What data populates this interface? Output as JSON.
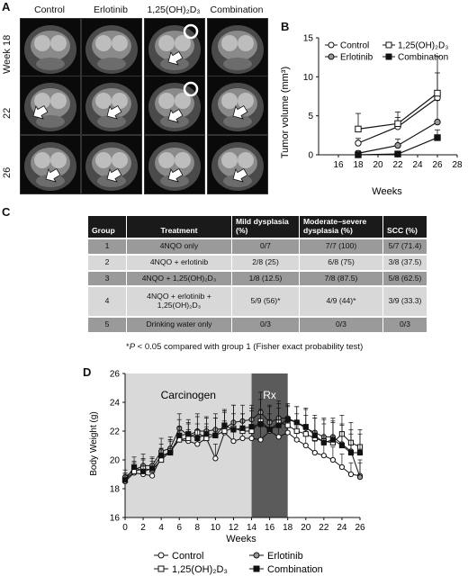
{
  "panelA": {
    "letter": "A",
    "columns": [
      "Control",
      "Erlotinib",
      "1,25(OH)₂D₃",
      "Combination"
    ],
    "rows": [
      "Week 18",
      "22",
      "26"
    ]
  },
  "panelB": {
    "letter": "B",
    "ylabel": "Tumor volume (mm³)",
    "xlabel": "Weeks",
    "xticks": [
      "16",
      "18",
      "20",
      "22",
      "24",
      "26",
      "28"
    ],
    "yticks": [
      "0",
      "5",
      "10",
      "15"
    ],
    "legend": [
      "Control",
      "1,25(OH)₂D₃",
      "Erlotinib",
      "Combination"
    ]
  },
  "panelC": {
    "letter": "C",
    "headers": [
      "Group",
      "Treatment",
      "Mild dysplasia (%)",
      "Moderate–severe dysplasia (%)",
      "SCC (%)"
    ],
    "rows": [
      [
        "1",
        "4NQO only",
        "0/7",
        "7/7 (100)",
        "5/7 (71.4)"
      ],
      [
        "2",
        "4NQO + erlotinib",
        "2/8 (25)",
        "6/8 (75)",
        "3/8 (37.5)"
      ],
      [
        "3",
        "4NQO + 1,25(OH)₂D₃",
        "1/8 (12.5)",
        "7/8 (87.5)",
        "5/8 (62.5)"
      ],
      [
        "4",
        "4NQO + erlotinib + 1,25(OH)₂D₃",
        "5/9 (56)*",
        "4/9 (44)*",
        "3/9 (33.3)"
      ],
      [
        "5",
        "Drinking water only",
        "0/3",
        "0/3",
        "0/3"
      ]
    ],
    "footnote_p": "P",
    "footnote": " < 0.05 compared with group 1 (Fisher exact probability test)"
  },
  "panelD": {
    "letter": "D",
    "ylabel": "Body Weight (g)",
    "xlabel": "Weeks",
    "region1": "Carcinogen",
    "region2": "Rx",
    "xticks": [
      "0",
      "2",
      "4",
      "6",
      "8",
      "10",
      "12",
      "14",
      "16",
      "18",
      "20",
      "22",
      "24",
      "26"
    ],
    "yticks": [
      "16",
      "18",
      "20",
      "22",
      "24",
      "26"
    ],
    "legend": [
      "Control",
      "Erlotinib",
      "1,25(OH)₂D₃",
      "Combination"
    ]
  },
  "chart_data": [
    {
      "type": "line",
      "panel": "B",
      "xlabel": "Weeks",
      "ylabel": "Tumor volume (mm³)",
      "xlim": [
        14,
        28
      ],
      "ylim": [
        0,
        15
      ],
      "x": [
        18,
        22,
        26
      ],
      "series": [
        {
          "name": "Control",
          "marker": "open-circle",
          "values": [
            1.5,
            3.6,
            7.3
          ],
          "error": [
            0.6,
            1.2,
            3.2
          ]
        },
        {
          "name": "Erlotinib",
          "marker": "gray-circle",
          "values": [
            0.2,
            1.2,
            4.2
          ],
          "error": [
            0.3,
            0.8,
            2.8
          ]
        },
        {
          "name": "1,25(OH)₂D₃",
          "marker": "open-square",
          "values": [
            3.3,
            4.0,
            7.9
          ],
          "error": [
            2.0,
            1.5,
            4.7
          ]
        },
        {
          "name": "Combination",
          "marker": "filled-square",
          "values": [
            0.0,
            0.1,
            2.2
          ],
          "error": [
            0.2,
            0.2,
            1.0
          ]
        }
      ]
    },
    {
      "type": "line",
      "panel": "D",
      "xlabel": "Weeks",
      "ylabel": "Body Weight (g)",
      "xlim": [
        0,
        26
      ],
      "ylim": [
        16,
        26
      ],
      "shaded": [
        {
          "label": "Carcinogen",
          "from": 0,
          "to": 14
        },
        {
          "label": "Rx",
          "from": 14,
          "to": 18
        }
      ],
      "x": [
        0,
        1,
        2,
        3,
        4,
        5,
        6,
        7,
        8,
        9,
        10,
        11,
        12,
        13,
        14,
        15,
        16,
        17,
        18,
        19,
        20,
        21,
        22,
        23,
        24,
        25,
        26
      ],
      "series": [
        {
          "name": "Control",
          "marker": "open-circle",
          "values": [
            18.5,
            19.1,
            19.0,
            18.9,
            20.2,
            20.6,
            21.4,
            21.3,
            21.1,
            21.5,
            20.1,
            21.9,
            21.3,
            21.5,
            21.5,
            21.4,
            22.0,
            21.6,
            21.9,
            21.4,
            21.0,
            20.5,
            20.3,
            20.0,
            19.5,
            19.0,
            18.9
          ],
          "error": [
            0.4,
            0.5,
            0.6,
            0.5,
            0.6,
            0.7,
            0.6,
            0.8,
            0.9,
            0.8,
            1.0,
            0.8,
            1.0,
            0.8,
            0.9,
            0.9,
            0.8,
            1.0,
            0.8,
            0.9,
            0.9,
            0.8,
            0.8,
            0.9,
            0.9,
            0.8,
            0.9
          ]
        },
        {
          "name": "Erlotinib",
          "marker": "gray-circle",
          "values": [
            18.8,
            19.3,
            19.6,
            19.6,
            20.6,
            20.8,
            22.2,
            21.7,
            22.0,
            22.0,
            22.1,
            22.2,
            22.6,
            22.7,
            22.8,
            23.3,
            22.6,
            22.9,
            22.9,
            22.6,
            22.2,
            21.9,
            21.6,
            21.6,
            21.1,
            20.6,
            18.8
          ],
          "error": [
            0.5,
            0.6,
            0.8,
            0.6,
            0.9,
            0.8,
            1.0,
            0.9,
            1.2,
            1.0,
            1.1,
            1.2,
            1.2,
            1.1,
            1.0,
            1.4,
            1.2,
            1.0,
            1.0,
            1.1,
            1.3,
            1.2,
            1.2,
            1.3,
            1.4,
            1.5,
            1.2
          ]
        },
        {
          "name": "1,25(OH)₂D₃",
          "marker": "open-square",
          "values": [
            18.6,
            19.2,
            19.4,
            19.3,
            20.0,
            20.6,
            21.4,
            21.5,
            21.9,
            21.5,
            21.7,
            22.0,
            22.2,
            22.0,
            22.0,
            22.7,
            22.1,
            22.6,
            22.4,
            22.0,
            21.8,
            21.5,
            21.3,
            21.2,
            21.8,
            21.2,
            20.9
          ],
          "error": [
            0.5,
            0.6,
            0.7,
            0.6,
            0.8,
            0.8,
            0.9,
            1.0,
            1.1,
            1.0,
            1.2,
            1.3,
            1.6,
            1.2,
            1.4,
            1.5,
            1.6,
            1.5,
            1.3,
            1.2,
            1.3,
            1.4,
            1.6,
            1.5,
            1.3,
            1.4,
            1.2
          ]
        },
        {
          "name": "Combination",
          "marker": "filled-square",
          "values": [
            18.6,
            19.5,
            19.2,
            19.4,
            20.3,
            20.5,
            21.7,
            21.8,
            21.5,
            21.8,
            21.7,
            22.4,
            22.1,
            22.2,
            22.3,
            22.5,
            22.1,
            22.4,
            22.8,
            22.6,
            22.3,
            21.7,
            21.2,
            21.4,
            21.0,
            20.5,
            20.5
          ],
          "error": [
            0.4,
            0.7,
            0.8,
            0.7,
            0.8,
            0.9,
            1.1,
            1.0,
            1.0,
            1.1,
            1.2,
            1.1,
            1.1,
            1.0,
            1.3,
            1.0,
            1.1,
            1.2,
            1.0,
            1.1,
            1.3,
            1.2,
            1.3,
            1.2,
            1.4,
            1.3,
            1.3
          ]
        }
      ]
    }
  ]
}
